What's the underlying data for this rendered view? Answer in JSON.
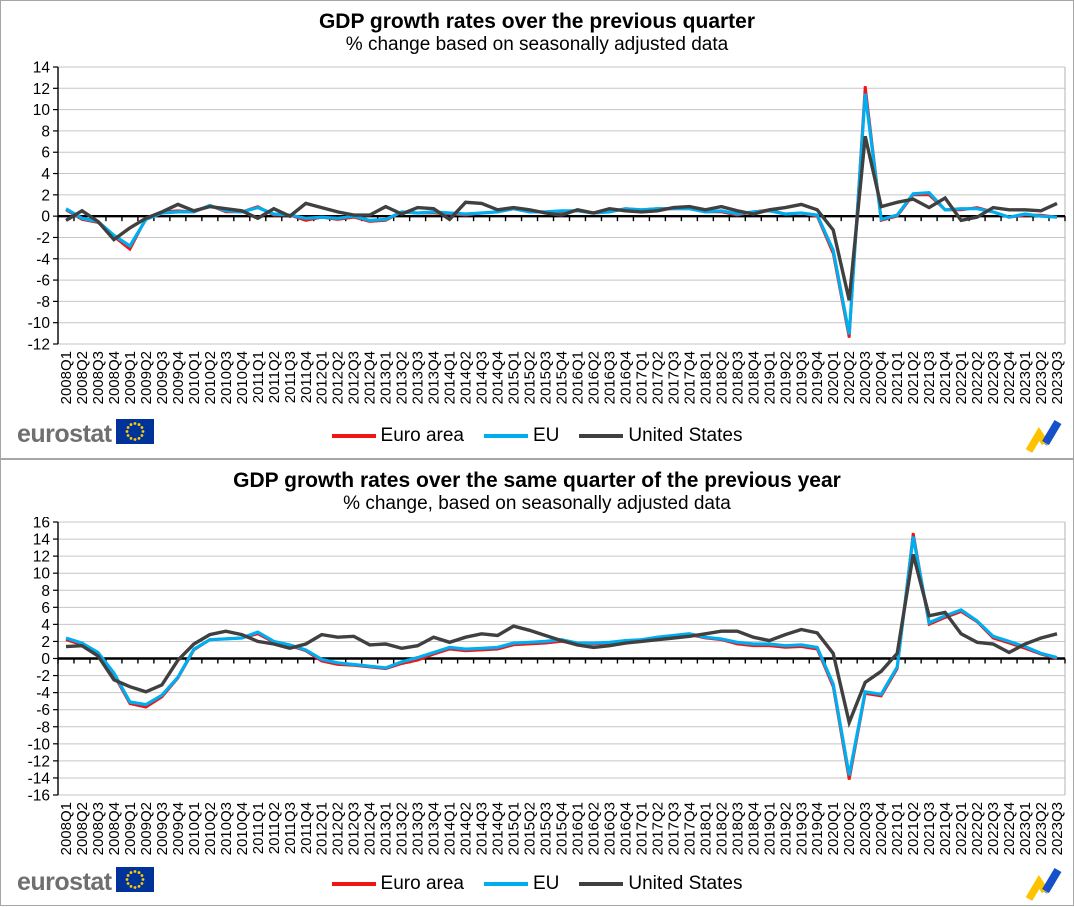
{
  "brand": {
    "logo_text": "eurostat",
    "flag_blue": "#003399",
    "star_yellow": "#ffcc00"
  },
  "legend": {
    "items": [
      {
        "label": "Euro area",
        "color": "#f01414"
      },
      {
        "label": "EU",
        "color": "#00aeef"
      },
      {
        "label": "United States",
        "color": "#404040"
      }
    ]
  },
  "panels": [
    {
      "title": "GDP growth rates over the previous quarter",
      "subtitle": "% change based on seasonally adjusted data"
    },
    {
      "title": "GDP growth rates over the same quarter of the previous year",
      "subtitle": "% change, based on seasonally adjusted data"
    }
  ],
  "chart_data": [
    {
      "type": "line",
      "title": "GDP growth rates over the previous quarter",
      "subtitle": "% change based on seasonally adjusted data",
      "ylim": [
        -12,
        14
      ],
      "ytick_step": 2,
      "grid": true,
      "legend_position": "bottom",
      "x": [
        "2008Q1",
        "2008Q2",
        "2008Q3",
        "2008Q4",
        "2009Q1",
        "2009Q2",
        "2009Q3",
        "2009Q4",
        "2010Q1",
        "2010Q2",
        "2010Q3",
        "2010Q4",
        "2011Q1",
        "2011Q2",
        "2011Q3",
        "2011Q4",
        "2012Q1",
        "2012Q2",
        "2012Q3",
        "2012Q4",
        "2013Q1",
        "2013Q2",
        "2013Q3",
        "2013Q4",
        "2014Q1",
        "2014Q2",
        "2014Q3",
        "2014Q4",
        "2015Q1",
        "2015Q2",
        "2015Q3",
        "2015Q4",
        "2016Q1",
        "2016Q2",
        "2016Q3",
        "2016Q4",
        "2017Q1",
        "2017Q2",
        "2017Q3",
        "2017Q4",
        "2018Q1",
        "2018Q2",
        "2018Q3",
        "2018Q4",
        "2019Q1",
        "2019Q2",
        "2019Q3",
        "2019Q4",
        "2020Q1",
        "2020Q2",
        "2020Q3",
        "2020Q4",
        "2021Q1",
        "2021Q2",
        "2021Q3",
        "2021Q4",
        "2022Q1",
        "2022Q2",
        "2022Q3",
        "2022Q4",
        "2023Q1",
        "2023Q2",
        "2023Q3"
      ],
      "series": [
        {
          "name": "Euro area",
          "color": "#f01414",
          "width": 2.8,
          "values": [
            0.6,
            -0.3,
            -0.6,
            -1.9,
            -3.1,
            -0.2,
            0.4,
            0.5,
            0.4,
            1.0,
            0.4,
            0.4,
            0.9,
            0.1,
            0.1,
            -0.4,
            -0.1,
            -0.3,
            -0.1,
            -0.5,
            -0.4,
            0.4,
            0.3,
            0.3,
            0.2,
            0.1,
            0.3,
            0.4,
            0.7,
            0.4,
            0.4,
            0.4,
            0.5,
            0.3,
            0.4,
            0.7,
            0.6,
            0.7,
            0.7,
            0.7,
            0.4,
            0.4,
            0.1,
            0.4,
            0.6,
            0.2,
            0.3,
            0.0,
            -3.5,
            -11.4,
            12.2,
            -0.4,
            0.0,
            2.0,
            2.0,
            0.6,
            0.6,
            0.8,
            0.4,
            -0.1,
            0.1,
            0.1,
            -0.1
          ]
        },
        {
          "name": "EU",
          "color": "#00aeef",
          "width": 3.2,
          "values": [
            0.7,
            -0.2,
            -0.5,
            -1.8,
            -2.8,
            -0.3,
            0.3,
            0.4,
            0.4,
            1.0,
            0.5,
            0.4,
            0.8,
            0.2,
            0.1,
            -0.2,
            -0.1,
            -0.2,
            0.0,
            -0.4,
            -0.3,
            0.4,
            0.3,
            0.4,
            0.3,
            0.2,
            0.3,
            0.4,
            0.7,
            0.4,
            0.4,
            0.5,
            0.5,
            0.3,
            0.4,
            0.7,
            0.6,
            0.7,
            0.7,
            0.7,
            0.4,
            0.5,
            0.2,
            0.4,
            0.5,
            0.2,
            0.3,
            0.1,
            -3.2,
            -11.1,
            11.5,
            -0.3,
            0.1,
            2.1,
            2.2,
            0.6,
            0.7,
            0.7,
            0.4,
            -0.1,
            0.2,
            0.0,
            -0.1
          ]
        },
        {
          "name": "United States",
          "color": "#404040",
          "width": 3.4,
          "values": [
            -0.4,
            0.5,
            -0.5,
            -2.2,
            -1.1,
            -0.2,
            0.4,
            1.1,
            0.5,
            0.9,
            0.7,
            0.5,
            -0.2,
            0.7,
            0.0,
            1.2,
            0.8,
            0.4,
            0.1,
            0.1,
            0.9,
            0.2,
            0.8,
            0.7,
            -0.3,
            1.3,
            1.2,
            0.6,
            0.8,
            0.6,
            0.3,
            0.1,
            0.6,
            0.3,
            0.7,
            0.5,
            0.4,
            0.5,
            0.8,
            0.9,
            0.6,
            0.9,
            0.5,
            0.2,
            0.6,
            0.8,
            1.1,
            0.6,
            -1.3,
            -7.9,
            7.5,
            0.9,
            1.3,
            1.6,
            0.8,
            1.7,
            -0.4,
            -0.1,
            0.8,
            0.6,
            0.6,
            0.5,
            1.2
          ]
        }
      ]
    },
    {
      "type": "line",
      "title": "GDP growth rates over the same quarter of the previous year",
      "subtitle": "% change, based on seasonally adjusted data",
      "ylim": [
        -16,
        16
      ],
      "ytick_step": 2,
      "grid": true,
      "legend_position": "bottom",
      "x": [
        "2008Q1",
        "2008Q2",
        "2008Q3",
        "2008Q4",
        "2009Q1",
        "2009Q2",
        "2009Q3",
        "2009Q4",
        "2010Q1",
        "2010Q2",
        "2010Q3",
        "2010Q4",
        "2011Q1",
        "2011Q2",
        "2011Q3",
        "2011Q4",
        "2012Q1",
        "2012Q2",
        "2012Q3",
        "2012Q4",
        "2013Q1",
        "2013Q2",
        "2013Q3",
        "2013Q4",
        "2014Q1",
        "2014Q2",
        "2014Q3",
        "2014Q4",
        "2015Q1",
        "2015Q2",
        "2015Q3",
        "2015Q4",
        "2016Q1",
        "2016Q2",
        "2016Q3",
        "2016Q4",
        "2017Q1",
        "2017Q2",
        "2017Q3",
        "2017Q4",
        "2018Q1",
        "2018Q2",
        "2018Q3",
        "2018Q4",
        "2019Q1",
        "2019Q2",
        "2019Q3",
        "2019Q4",
        "2020Q1",
        "2020Q2",
        "2020Q3",
        "2020Q4",
        "2021Q1",
        "2021Q2",
        "2021Q3",
        "2021Q4",
        "2022Q1",
        "2022Q2",
        "2022Q3",
        "2022Q4",
        "2023Q1",
        "2023Q2",
        "2023Q3"
      ],
      "series": [
        {
          "name": "Euro area",
          "color": "#f01414",
          "width": 2.8,
          "values": [
            2.2,
            1.6,
            0.5,
            -1.9,
            -5.3,
            -5.7,
            -4.5,
            -2.3,
            1.0,
            2.2,
            2.3,
            2.4,
            2.9,
            1.9,
            1.5,
            0.9,
            -0.3,
            -0.7,
            -0.8,
            -1.0,
            -1.2,
            -0.6,
            -0.2,
            0.5,
            1.1,
            0.9,
            1.0,
            1.1,
            1.6,
            1.7,
            1.8,
            2.0,
            1.7,
            1.7,
            1.8,
            2.0,
            2.1,
            2.4,
            2.6,
            2.8,
            2.4,
            2.2,
            1.7,
            1.5,
            1.5,
            1.3,
            1.4,
            1.1,
            -3.3,
            -14.2,
            -4.1,
            -4.4,
            -1.2,
            14.7,
            4.0,
            4.8,
            5.5,
            4.3,
            2.4,
            1.8,
            1.2,
            0.5,
            0.0
          ]
        },
        {
          "name": "EU",
          "color": "#00aeef",
          "width": 3.2,
          "values": [
            2.4,
            1.8,
            0.7,
            -1.7,
            -5.1,
            -5.4,
            -4.3,
            -2.2,
            1.1,
            2.2,
            2.3,
            2.4,
            3.1,
            2.0,
            1.6,
            1.0,
            -0.1,
            -0.5,
            -0.7,
            -0.9,
            -1.1,
            -0.4,
            0.1,
            0.7,
            1.3,
            1.1,
            1.2,
            1.3,
            1.8,
            1.9,
            2.0,
            2.2,
            1.8,
            1.8,
            1.9,
            2.1,
            2.2,
            2.5,
            2.7,
            2.9,
            2.5,
            2.3,
            1.9,
            1.7,
            1.7,
            1.5,
            1.6,
            1.3,
            -3.0,
            -13.7,
            -3.9,
            -4.2,
            -1.0,
            14.3,
            4.2,
            5.0,
            5.7,
            4.4,
            2.6,
            2.0,
            1.4,
            0.6,
            0.1
          ]
        },
        {
          "name": "United States",
          "color": "#404040",
          "width": 3.4,
          "values": [
            1.4,
            1.5,
            0.3,
            -2.5,
            -3.3,
            -3.9,
            -3.1,
            -0.2,
            1.7,
            2.8,
            3.2,
            2.8,
            2.0,
            1.7,
            1.2,
            1.7,
            2.8,
            2.5,
            2.6,
            1.6,
            1.7,
            1.2,
            1.5,
            2.5,
            1.9,
            2.5,
            2.9,
            2.7,
            3.8,
            3.3,
            2.7,
            2.1,
            1.6,
            1.3,
            1.5,
            1.8,
            2.0,
            2.2,
            2.4,
            2.6,
            2.9,
            3.2,
            3.2,
            2.5,
            2.1,
            2.8,
            3.4,
            3.0,
            0.6,
            -7.5,
            -2.8,
            -1.5,
            0.6,
            12.2,
            5.0,
            5.4,
            2.9,
            1.9,
            1.7,
            0.7,
            1.7,
            2.4,
            2.9
          ]
        }
      ]
    }
  ]
}
